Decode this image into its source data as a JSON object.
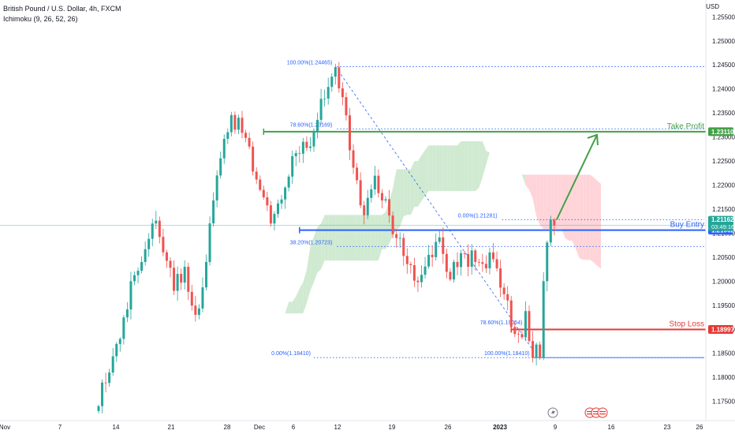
{
  "header": {
    "symbol_line": "British Pound / U.S. Dollar, 4h, FXCM",
    "indicator_line": "Ichimoku (9, 26, 52, 26)",
    "currency": "USD"
  },
  "colors": {
    "bull": "#26a69a",
    "bear": "#ef5350",
    "take_profit": "#43a047",
    "buy_entry": "#2962ff",
    "stop_loss": "#e53935",
    "fib": "#2962ff",
    "cloud_bull": "#c8e6c9",
    "cloud_bear": "#ffcdd2"
  },
  "chart_data": {
    "type": "candlestick",
    "y_ticks": [
      "1.17500",
      "1.18000",
      "1.18500",
      "1.19000",
      "1.19500",
      "1.20000",
      "1.20500",
      "1.21000",
      "1.21500",
      "1.22000",
      "1.22500",
      "1.23000",
      "1.23500",
      "1.24000",
      "1.24500",
      "1.25000",
      "1.25500"
    ],
    "x_ticks": [
      "Nov",
      "7",
      "14",
      "21",
      "28",
      "Dec",
      "6",
      "12",
      "19",
      "26",
      "2023",
      "9",
      "16",
      "23",
      "26"
    ],
    "ylim": [
      1.171,
      1.2585
    ],
    "price_path": [
      [
        0,
        1.174
      ],
      [
        3,
        1.181
      ],
      [
        6,
        1.188
      ],
      [
        9,
        1.2
      ],
      [
        12,
        1.204
      ],
      [
        15,
        1.212
      ],
      [
        18,
        1.206
      ],
      [
        21,
        1.198
      ],
      [
        24,
        1.203
      ],
      [
        27,
        1.193
      ],
      [
        30,
        1.204
      ],
      [
        33,
        1.222
      ],
      [
        36,
        1.231
      ],
      [
        39,
        1.234
      ],
      [
        42,
        1.228
      ],
      [
        45,
        1.219
      ],
      [
        48,
        1.212
      ],
      [
        51,
        1.217
      ],
      [
        54,
        1.226
      ],
      [
        57,
        1.229
      ],
      [
        60,
        1.231
      ],
      [
        63,
        1.238
      ],
      [
        66,
        1.2445
      ],
      [
        68,
        1.24
      ],
      [
        70,
        1.229
      ],
      [
        72,
        1.221
      ],
      [
        74,
        1.216
      ],
      [
        77,
        1.22
      ],
      [
        80,
        1.215
      ],
      [
        83,
        1.211
      ],
      [
        86,
        1.205
      ],
      [
        89,
        1.2
      ],
      [
        92,
        1.204
      ],
      [
        95,
        1.207
      ],
      [
        98,
        1.203
      ],
      [
        101,
        1.206
      ],
      [
        104,
        1.205
      ],
      [
        107,
        1.202
      ],
      [
        110,
        1.204
      ],
      [
        113,
        1.2
      ],
      [
        115,
        1.192
      ],
      [
        117,
        1.189
      ],
      [
        119,
        1.191
      ],
      [
        121,
        1.1841
      ],
      [
        123,
        1.1841
      ],
      [
        124,
        1.2
      ],
      [
        125,
        1.206
      ],
      [
        126,
        1.2128
      ],
      [
        127,
        1.2116
      ]
    ],
    "ichimoku_cloud": [
      {
        "from": 1.17,
        "to": 1.194,
        "sentiment": "bullish"
      },
      {
        "from": 1.19,
        "to": 1.232,
        "sentiment": "bullish"
      },
      {
        "from": 1.203,
        "to": 1.23,
        "sentiment": "bearish"
      }
    ],
    "levels": [
      {
        "name": "take-profit",
        "label": "Take Profit",
        "value": "1.23110",
        "price": 1.2311,
        "color": "#43a047"
      },
      {
        "name": "buy-entry",
        "label": "Buy Entry",
        "value": "1.21062",
        "price": 1.21062,
        "color": "#2962ff"
      },
      {
        "name": "stop-loss",
        "label": "Stop Loss",
        "value": "1.18997",
        "price": 1.18997,
        "color": "#e53935"
      }
    ],
    "current_price": {
      "value": "1.21162",
      "countdown": "03:49:16",
      "price": 1.21162
    },
    "fib_upper": {
      "start_price": 1.24465,
      "end_price": 1.21281,
      "labels": [
        {
          "text": "100.00%(1.24465)",
          "price": 1.24465
        },
        {
          "text": "78.60%(1.23169)",
          "price": 1.23169
        },
        {
          "text": "38.20%(1.20723)",
          "price": 1.20723
        },
        {
          "text": "0.00%(1.21281)",
          "price": 1.21281
        }
      ]
    },
    "fib_lower": {
      "start_price": 1.1841,
      "end_price": 1.1841,
      "labels": [
        {
          "text": "0.00%(1.18410)",
          "price": 1.1841
        },
        {
          "text": "78.60%(1.19054)",
          "price": 1.19054
        },
        {
          "text": "100.00%(1.18410)",
          "price": 1.1841
        }
      ]
    },
    "target_arrow": {
      "from_price": 1.2128,
      "to_price": 1.2311
    }
  }
}
